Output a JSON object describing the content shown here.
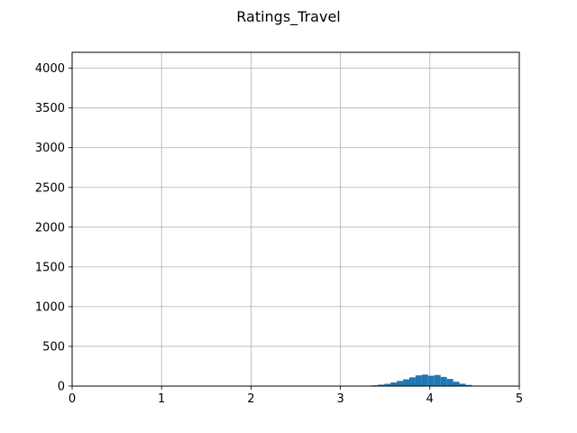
{
  "chart_data": {
    "type": "bar",
    "title": "Ratings_Travel",
    "xlabel": "",
    "ylabel": "",
    "xlim": [
      0,
      5
    ],
    "ylim": [
      0,
      4200
    ],
    "grid": true,
    "bar_color": "#1f77b4",
    "bin_width": 0.07,
    "bin_starts": [
      3.28,
      3.35,
      3.42,
      3.49,
      3.56,
      3.63,
      3.7,
      3.77,
      3.84,
      3.91,
      3.98,
      4.05,
      4.12,
      4.19,
      4.26,
      4.33,
      4.4,
      4.47
    ],
    "values": [
      5,
      10,
      18,
      28,
      45,
      65,
      85,
      110,
      135,
      145,
      130,
      140,
      115,
      90,
      55,
      30,
      15,
      6
    ],
    "x_ticks": [
      {
        "value": 0,
        "label": "0"
      },
      {
        "value": 1,
        "label": "1"
      },
      {
        "value": 2,
        "label": "2"
      },
      {
        "value": 3,
        "label": "3"
      },
      {
        "value": 4,
        "label": "4"
      },
      {
        "value": 5,
        "label": "5"
      }
    ],
    "y_ticks": [
      {
        "value": 0,
        "label": "0"
      },
      {
        "value": 500,
        "label": "500"
      },
      {
        "value": 1000,
        "label": "1000"
      },
      {
        "value": 1500,
        "label": "1500"
      },
      {
        "value": 2000,
        "label": "2000"
      },
      {
        "value": 2500,
        "label": "2500"
      },
      {
        "value": 3000,
        "label": "3000"
      },
      {
        "value": 3500,
        "label": "3500"
      },
      {
        "value": 4000,
        "label": "4000"
      }
    ]
  }
}
